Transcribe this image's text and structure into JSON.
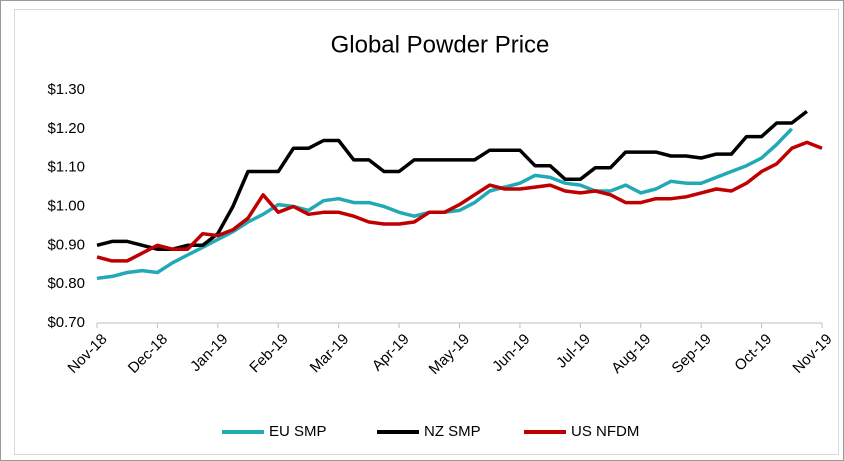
{
  "chart_data": {
    "type": "line",
    "title": "Global Powder Price",
    "categories": [
      "Nov-18",
      null,
      null,
      null,
      "Dec-18",
      null,
      null,
      null,
      "Jan-19",
      null,
      null,
      null,
      "Feb-19",
      null,
      null,
      null,
      "Mar-19",
      null,
      null,
      null,
      "Apr-19",
      null,
      null,
      null,
      "May-19",
      null,
      null,
      null,
      "Jun-19",
      null,
      null,
      null,
      "Jul-19",
      null,
      null,
      null,
      "Aug-19",
      null,
      null,
      null,
      "Sep-19",
      null,
      null,
      null,
      "Oct-19",
      null,
      null,
      null,
      "Nov-19"
    ],
    "series": [
      {
        "name": "EU SMP",
        "color": "#21a9b5",
        "values": [
          0.815,
          0.82,
          0.83,
          0.835,
          0.83,
          0.855,
          0.875,
          0.895,
          0.915,
          0.935,
          0.96,
          0.98,
          1.005,
          1.0,
          0.99,
          1.015,
          1.02,
          1.01,
          1.01,
          1.0,
          0.985,
          0.975,
          0.985,
          0.985,
          0.99,
          1.01,
          1.04,
          1.05,
          1.06,
          1.08,
          1.075,
          1.06,
          1.055,
          1.04,
          1.04,
          1.055,
          1.035,
          1.045,
          1.065,
          1.06,
          1.06,
          1.075,
          1.09,
          1.105,
          1.125,
          1.16,
          1.2,
          null,
          null
        ]
      },
      {
        "name": "NZ SMP",
        "color": "#000000",
        "values": [
          0.9,
          0.91,
          0.91,
          0.9,
          0.89,
          0.89,
          0.9,
          0.9,
          0.93,
          1.0,
          1.09,
          1.09,
          1.09,
          1.15,
          1.15,
          1.17,
          1.17,
          1.12,
          1.12,
          1.09,
          1.09,
          1.12,
          1.12,
          1.12,
          1.12,
          1.12,
          1.145,
          1.145,
          1.145,
          1.105,
          1.105,
          1.07,
          1.07,
          1.1,
          1.1,
          1.14,
          1.14,
          1.14,
          1.13,
          1.13,
          1.125,
          1.135,
          1.135,
          1.18,
          1.18,
          1.215,
          1.215,
          1.245,
          null
        ]
      },
      {
        "name": "US NFDM",
        "color": "#c00000",
        "values": [
          0.87,
          0.86,
          0.86,
          0.88,
          0.9,
          0.89,
          0.89,
          0.93,
          0.925,
          0.94,
          0.97,
          1.03,
          0.985,
          1.0,
          0.98,
          0.985,
          0.985,
          0.975,
          0.96,
          0.955,
          0.955,
          0.96,
          0.985,
          0.985,
          1.005,
          1.03,
          1.055,
          1.045,
          1.045,
          1.05,
          1.055,
          1.04,
          1.035,
          1.04,
          1.03,
          1.01,
          1.01,
          1.02,
          1.02,
          1.025,
          1.035,
          1.045,
          1.04,
          1.06,
          1.09,
          1.11,
          1.15,
          1.165,
          1.15
        ]
      }
    ],
    "ylim": [
      0.7,
      1.3
    ],
    "yticks": [
      {
        "value": 0.7,
        "label": "$0.70"
      },
      {
        "value": 0.8,
        "label": "$0.80"
      },
      {
        "value": 0.9,
        "label": "$0.90"
      },
      {
        "value": 1.0,
        "label": "$1.00"
      },
      {
        "value": 1.1,
        "label": "$1.10"
      },
      {
        "value": 1.2,
        "label": "$1.20"
      },
      {
        "value": 1.3,
        "label": "$1.30"
      }
    ],
    "grid": false,
    "legend": "bottom"
  }
}
